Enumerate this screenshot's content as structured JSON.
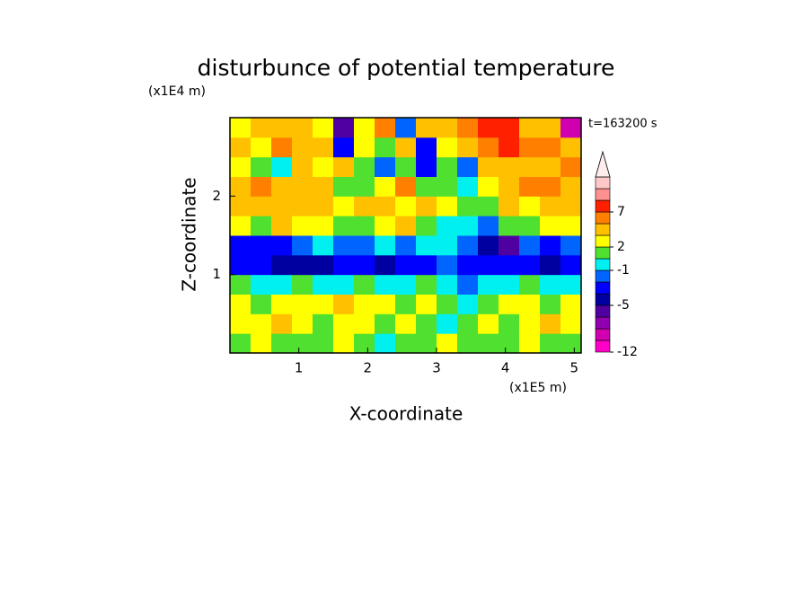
{
  "chart_data": {
    "type": "contour",
    "title": "disturbunce of potential temperature",
    "y_unit": "(x1E4 m)",
    "x_unit": "(x1E5 m)",
    "xlabel": "X-coordinate",
    "ylabel": "Z-coordinate",
    "annotation": "t=163200 s",
    "xlim": [
      0,
      5.1
    ],
    "ylim": [
      0,
      3
    ],
    "xticks": [
      1,
      2,
      3,
      4,
      5
    ],
    "yticks": [
      1,
      2
    ],
    "levels": [
      -12,
      -10,
      -8,
      -6,
      -5,
      -4,
      -2,
      -1,
      0,
      2,
      3,
      5,
      7,
      9,
      11,
      13
    ],
    "colors": [
      "#ff00c8",
      "#d000b0",
      "#9000b0",
      "#5000a0",
      "#0000a0",
      "#0000ff",
      "#0064ff",
      "#00f0f0",
      "#50e030",
      "#ffff00",
      "#ffc000",
      "#ff8000",
      "#ff2000",
      "#ff9090",
      "#ffc8c8"
    ],
    "extend_color": "#ffecec",
    "colorbar_ticks": [
      7,
      2,
      -1,
      -5,
      -12
    ],
    "z": [
      [
        1,
        2,
        1,
        0,
        1,
        2,
        1,
        -1,
        1,
        1,
        2,
        1,
        0,
        1,
        2,
        1,
        1
      ],
      [
        2,
        2,
        3,
        2,
        1,
        2,
        2,
        1,
        2,
        1,
        -1,
        0,
        2,
        1,
        2,
        3,
        2
      ],
      [
        2,
        1,
        2,
        2,
        2,
        3,
        2,
        2,
        1,
        2,
        0,
        -1,
        1,
        2,
        2,
        1,
        2
      ],
      [
        0,
        -1,
        -1,
        0,
        -1,
        -1,
        0,
        -1,
        -1,
        0,
        -1,
        -2,
        -1,
        -1,
        0,
        -1,
        -1
      ],
      [
        -4,
        -4,
        -5,
        -5,
        -5,
        -4,
        -4,
        -5,
        -4,
        -4,
        -2,
        -3,
        -4,
        -4,
        -4,
        -5,
        -4
      ],
      [
        -3,
        -4,
        -4,
        -2,
        -1,
        -2,
        -2,
        -1,
        -2,
        -1,
        -1,
        -2,
        -5,
        -6,
        -2,
        -3,
        -2
      ],
      [
        2,
        1,
        3,
        2,
        2,
        1,
        0,
        2,
        3,
        0,
        -1,
        -1,
        -2,
        0,
        1,
        2,
        2
      ],
      [
        3,
        4,
        3,
        4,
        3,
        2,
        3,
        4,
        2,
        3,
        2,
        0,
        1,
        3,
        2,
        3,
        4
      ],
      [
        4,
        5,
        4,
        3,
        3,
        1,
        0,
        2,
        5,
        1,
        0,
        -1,
        2,
        4,
        5,
        5,
        4
      ],
      [
        2,
        1,
        -1,
        3,
        2,
        3,
        0,
        -2,
        0,
        -3,
        1,
        -2,
        3,
        4,
        3,
        4,
        5
      ],
      [
        3,
        2,
        5,
        4,
        3,
        -3,
        2,
        0,
        3,
        -4,
        2,
        3,
        6,
        7,
        5,
        5,
        4
      ],
      [
        2,
        3,
        3,
        4,
        2,
        -6,
        2,
        5,
        -2,
        4,
        3,
        5,
        7,
        8,
        4,
        3,
        -9
      ]
    ]
  }
}
